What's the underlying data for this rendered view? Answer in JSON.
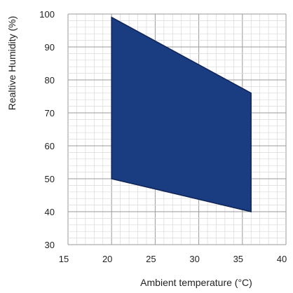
{
  "chart_data": {
    "type": "area",
    "title": "",
    "xlabel": "Ambient temperature (°C)",
    "ylabel": "Realtive Humidity (%)",
    "xlim": [
      15,
      40
    ],
    "ylim": [
      30,
      100
    ],
    "x_ticks": [
      "15",
      "20",
      "25",
      "30",
      "35",
      "40"
    ],
    "y_ticks": [
      "30",
      "40",
      "50",
      "60",
      "70",
      "80",
      "90",
      "100"
    ],
    "grid": true,
    "series": [
      {
        "values": [
          {
            "x": 20,
            "y": 99
          },
          {
            "x": 36,
            "y": 76
          },
          {
            "x": 36,
            "y": 40
          },
          {
            "x": 20,
            "y": 50
          }
        ]
      }
    ],
    "fill_color": "#1a3d82",
    "edge_color": "#0e2356"
  }
}
